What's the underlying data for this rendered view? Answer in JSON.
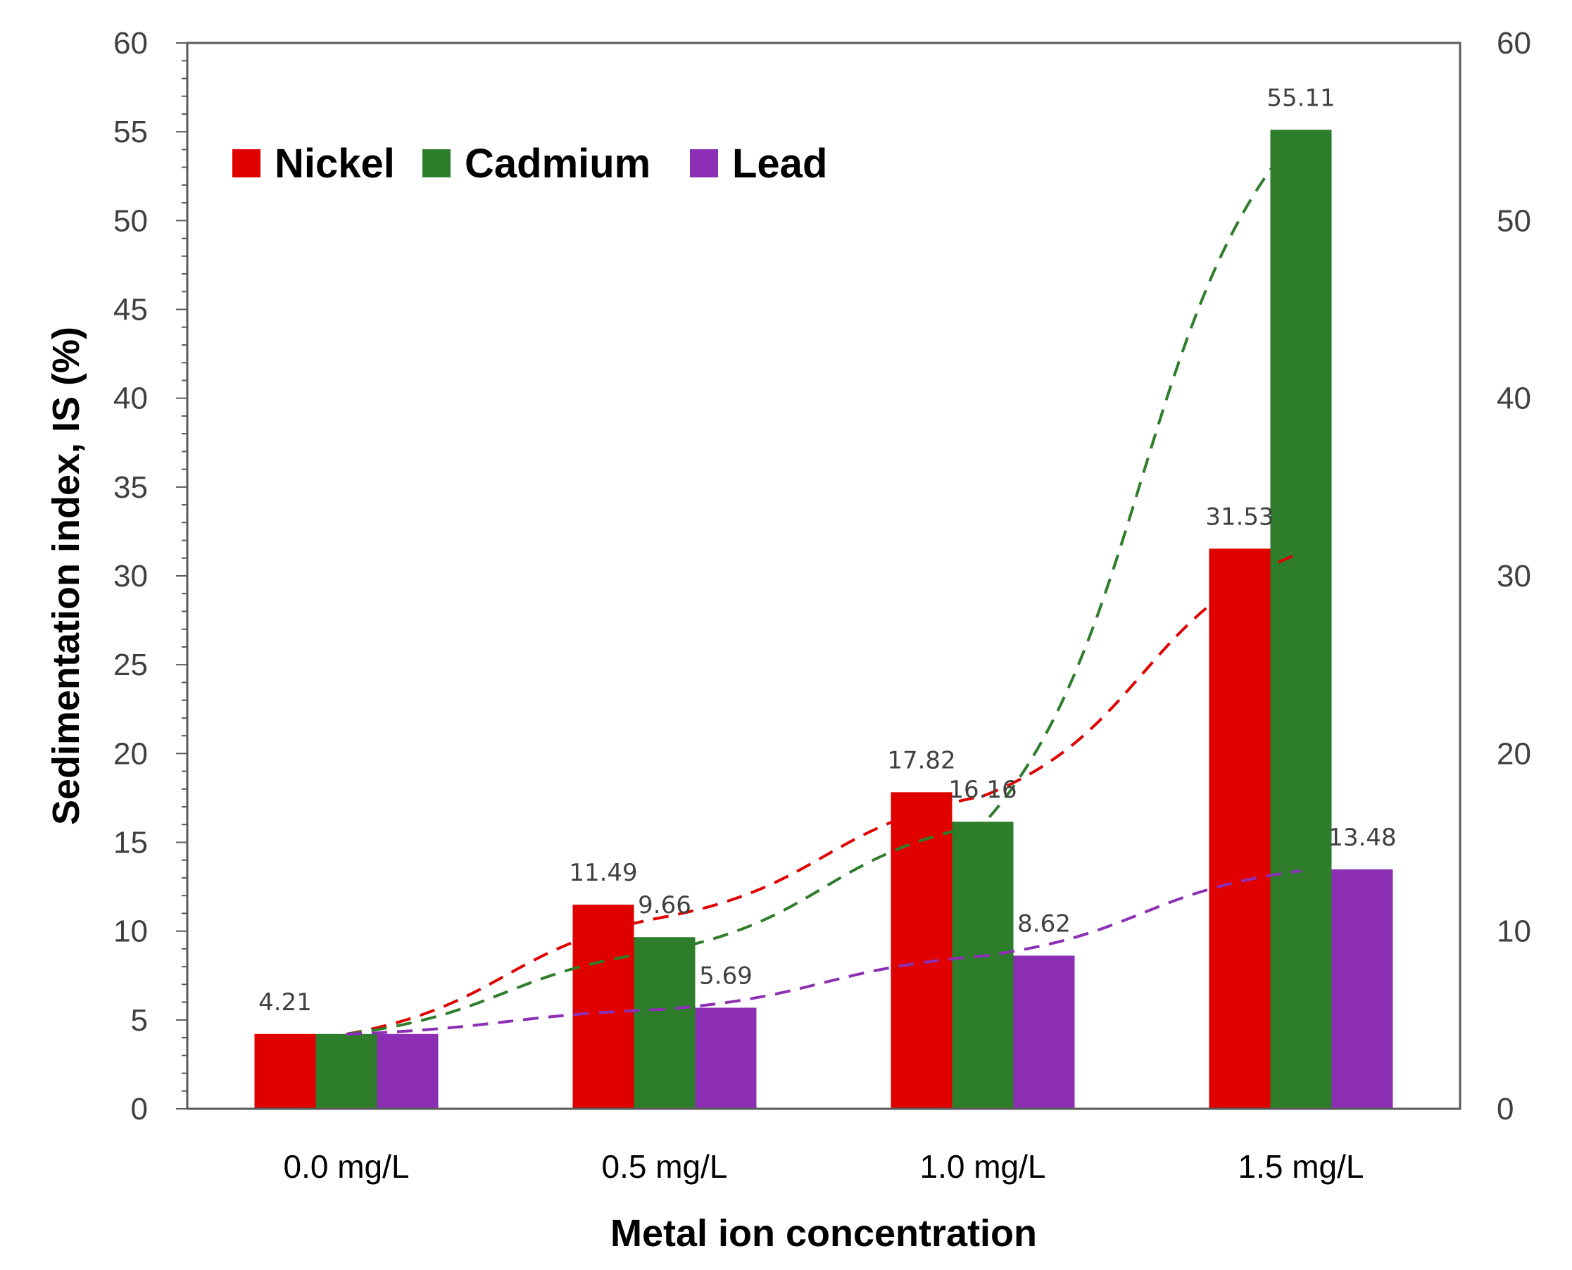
{
  "chart_data": {
    "type": "bar",
    "title": "",
    "xlabel": "Metal ion concentration",
    "ylabel": "Sedimentation index, IS (%)",
    "ylim": [
      0,
      60
    ],
    "y_ticks": [
      0,
      5,
      10,
      15,
      20,
      25,
      30,
      35,
      40,
      45,
      50,
      55,
      60
    ],
    "y2_ticks": [
      0,
      10,
      20,
      30,
      40,
      50,
      60
    ],
    "categories": [
      "0.0 mg/L",
      "0.5 mg/L",
      "1.0 mg/L",
      "1.5 mg/L"
    ],
    "series": [
      {
        "name": "Nickel",
        "color": "#e00000",
        "values": [
          4.21,
          11.49,
          17.82,
          31.53
        ],
        "labels": [
          "4.21",
          "11.49",
          "17.82",
          "31.53"
        ],
        "trendline": [
          4.2,
          10.8,
          17.6,
          31.3
        ]
      },
      {
        "name": "Cadmium",
        "color": "#2e7d2b",
        "values": [
          4.21,
          9.66,
          16.16,
          55.11
        ],
        "labels": [
          "",
          "9.66",
          "16.16",
          "55.11"
        ],
        "trendline": [
          4.2,
          8.9,
          16.0,
          55.0
        ]
      },
      {
        "name": "Lead",
        "color": "#8c2fb5",
        "values": [
          4.21,
          5.69,
          8.62,
          13.48
        ],
        "labels": [
          "",
          "5.69",
          "8.62",
          "13.48"
        ],
        "trendline": [
          4.2,
          5.6,
          8.6,
          13.4
        ]
      }
    ],
    "legend_position": "top-left"
  }
}
